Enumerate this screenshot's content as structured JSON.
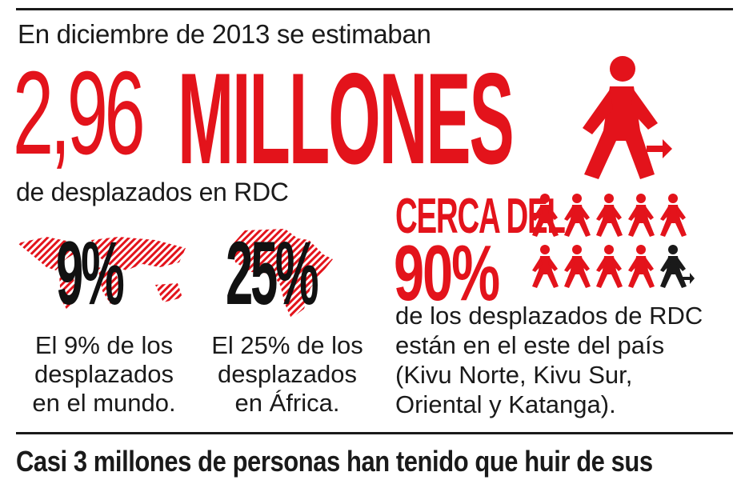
{
  "intro_text": "En diciembre de 2013 se estimaban",
  "headline": {
    "number": "2,96",
    "word": "MILLONES"
  },
  "subline": "de desplazados en RDC",
  "stats": [
    {
      "percent": "9%",
      "caption": "El 9% de los desplazados en el mundo.",
      "icon": "world-map-icon"
    },
    {
      "percent": "25%",
      "caption": "El 25% de los desplazados en África.",
      "icon": "africa-map-icon"
    }
  ],
  "east": {
    "label": "CERCA DEL",
    "percent": "90%",
    "description": "de los desplazados de RDC están en el este del país (Kivu Norte, Kivu Sur, Oriental y Katanga).",
    "people_total": 10,
    "people_highlighted": 9
  },
  "footer_text": "Casi 3 millones de personas han tenido que huir de sus",
  "colors": {
    "accent": "#e3131b",
    "text": "#1a1a1a",
    "hatch": "#e3131b"
  }
}
